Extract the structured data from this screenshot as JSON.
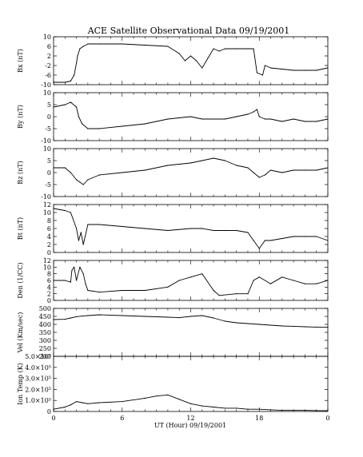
{
  "chart_data": {
    "type": "line",
    "title": "ACE Satellite Observational Data   09/19/2001",
    "xlabel": "UT (Hour)   09/19/2001",
    "x_ticks": [
      "0",
      "6",
      "12",
      "18",
      "0"
    ],
    "x_range": [
      0,
      24
    ],
    "panels": [
      {
        "id": "bx",
        "ylabel": "Bx (nT)",
        "ylim": [
          -10,
          10
        ],
        "yticks": [
          -10,
          -6,
          -2,
          2,
          6,
          10
        ],
        "ytick_labels": [
          "-10",
          "-6",
          "-2",
          "2",
          "6",
          "10"
        ],
        "x": [
          0,
          1,
          1.5,
          1.8,
          2.0,
          2.1,
          2.3,
          2.6,
          3.0,
          4,
          6,
          8,
          10,
          11,
          11.5,
          12,
          12.5,
          13,
          13.5,
          14,
          14.5,
          15,
          16,
          17,
          17.5,
          17.8,
          18.3,
          18.5,
          19,
          20,
          21,
          22,
          23,
          24
        ],
        "y": [
          -9,
          -9,
          -8.5,
          -6,
          -1,
          2,
          5,
          6,
          7,
          7,
          7,
          6.5,
          6,
          3,
          0,
          2,
          0,
          -3,
          1,
          5,
          4,
          5,
          5,
          5,
          5,
          -5,
          -6,
          -2,
          -3,
          -3.5,
          -4,
          -4,
          -4,
          -3
        ],
        "grid": false,
        "legend": "none"
      },
      {
        "id": "by",
        "ylabel": "By (nT)",
        "ylim": [
          -10,
          10
        ],
        "yticks": [
          -10,
          -5,
          0,
          5,
          10
        ],
        "ytick_labels": [
          "-10",
          "-5",
          "0",
          "5",
          "10"
        ],
        "x": [
          0,
          1,
          1.5,
          2.0,
          2.2,
          2.5,
          3.0,
          4,
          6,
          8,
          10,
          12,
          13,
          14,
          15,
          16,
          17,
          17.5,
          17.8,
          18.0,
          18.5,
          19,
          20,
          21,
          22,
          23,
          24
        ],
        "y": [
          4,
          5,
          6,
          4,
          0,
          -3,
          -5,
          -5,
          -4,
          -3,
          -1,
          0,
          -1,
          -1,
          -1,
          0,
          1,
          2,
          3,
          0,
          -1,
          -1,
          -2,
          -1,
          -2,
          -2,
          -1
        ],
        "grid": false,
        "legend": "none"
      },
      {
        "id": "bz",
        "ylabel": "Bz (nT)",
        "ylim": [
          -10,
          10
        ],
        "yticks": [
          -10,
          -5,
          0,
          5,
          10
        ],
        "ytick_labels": [
          "-10",
          "-5",
          "0",
          "5",
          "10"
        ],
        "x": [
          0,
          1,
          1.5,
          2.0,
          2.3,
          2.6,
          3.0,
          4,
          6,
          8,
          10,
          12,
          13,
          14,
          15,
          16,
          17,
          17.5,
          18,
          18.5,
          19,
          20,
          21,
          22,
          23,
          24
        ],
        "y": [
          2,
          2,
          0,
          -3,
          -4,
          -5,
          -3,
          -1,
          0,
          1,
          3,
          4,
          5,
          6,
          5,
          3,
          2,
          0,
          -2,
          -1,
          1,
          0,
          1,
          1,
          1,
          2
        ],
        "grid": false,
        "legend": "none"
      },
      {
        "id": "bt",
        "ylabel": "Bt (nT)",
        "ylim": [
          0,
          12
        ],
        "yticks": [
          0,
          2,
          4,
          6,
          8,
          10,
          12
        ],
        "ytick_labels": [
          "0",
          "2",
          "4",
          "6",
          "8",
          "10",
          "12"
        ],
        "x": [
          0,
          1,
          1.5,
          2.0,
          2.2,
          2.4,
          2.6,
          3.0,
          4,
          6,
          8,
          10,
          12,
          13,
          14,
          15,
          16,
          17,
          17.5,
          18,
          18.5,
          19,
          20,
          21,
          22,
          23,
          24
        ],
        "y": [
          11,
          10.5,
          10,
          6,
          3,
          5,
          2,
          7,
          7,
          6.5,
          6,
          5.5,
          6,
          6,
          5.5,
          5.5,
          5.5,
          5,
          3,
          1,
          3,
          3,
          3.5,
          4,
          4,
          4,
          3
        ],
        "grid": false,
        "legend": "none"
      },
      {
        "id": "den",
        "ylabel": "Den (1/CC)",
        "ylim": [
          0,
          12
        ],
        "yticks": [
          0,
          2,
          4,
          6,
          8,
          10,
          12
        ],
        "ytick_labels": [
          "0",
          "2",
          "4",
          "6",
          "8",
          "10",
          "12"
        ],
        "x": [
          0,
          1,
          1.5,
          1.6,
          1.8,
          2.0,
          2.3,
          2.6,
          2.8,
          3.0,
          4,
          6,
          8,
          10,
          11,
          12,
          13,
          14,
          14.5,
          16,
          17,
          17.5,
          18,
          19,
          20,
          21,
          22,
          23,
          24
        ],
        "y": [
          6,
          6,
          5.5,
          9,
          10,
          6,
          10,
          8,
          5,
          3,
          2.5,
          3,
          3,
          4,
          6,
          7,
          8,
          3,
          1.5,
          2,
          2,
          6,
          7,
          5,
          7,
          6,
          5,
          5,
          6
        ],
        "grid": false,
        "legend": "none"
      },
      {
        "id": "vel",
        "ylabel": "Vel (Km/sec)",
        "ylim": [
          200,
          500
        ],
        "yticks": [
          200,
          250,
          300,
          350,
          400,
          450,
          500
        ],
        "ytick_labels": [
          "200",
          "250",
          "300",
          "350",
          "400",
          "450",
          "500"
        ],
        "x": [
          0,
          1,
          1.5,
          2.0,
          2.5,
          3.0,
          4,
          6,
          8,
          10,
          11,
          12,
          13,
          14,
          15,
          16,
          17,
          18,
          19,
          20,
          21,
          22,
          23,
          24
        ],
        "y": [
          430,
          432,
          440,
          448,
          452,
          455,
          460,
          455,
          450,
          445,
          442,
          450,
          455,
          440,
          420,
          410,
          405,
          400,
          395,
          390,
          388,
          385,
          383,
          382
        ],
        "grid": false,
        "legend": "none"
      },
      {
        "id": "temp",
        "ylabel": "Ion Temp (K)",
        "ylim": [
          0,
          500000
        ],
        "yticks": [
          0,
          100000,
          200000,
          300000,
          400000,
          500000
        ],
        "ytick_labels": [
          "0",
          "1.0×10⁵",
          "2.0×10⁵",
          "3.0×10⁵",
          "4.0×10⁵",
          "5.0×10⁵"
        ],
        "x": [
          0,
          1,
          1.5,
          2.0,
          2.5,
          3.0,
          4,
          6,
          8,
          9,
          10,
          11,
          12,
          13,
          14,
          15,
          16,
          17,
          18,
          19,
          20,
          21,
          22,
          23,
          24
        ],
        "y": [
          20000,
          40000,
          60000,
          90000,
          80000,
          70000,
          80000,
          90000,
          120000,
          140000,
          150000,
          110000,
          70000,
          50000,
          40000,
          30000,
          30000,
          20000,
          20000,
          15000,
          10000,
          10000,
          10000,
          8000,
          8000
        ],
        "grid": false,
        "legend": "none"
      }
    ]
  }
}
